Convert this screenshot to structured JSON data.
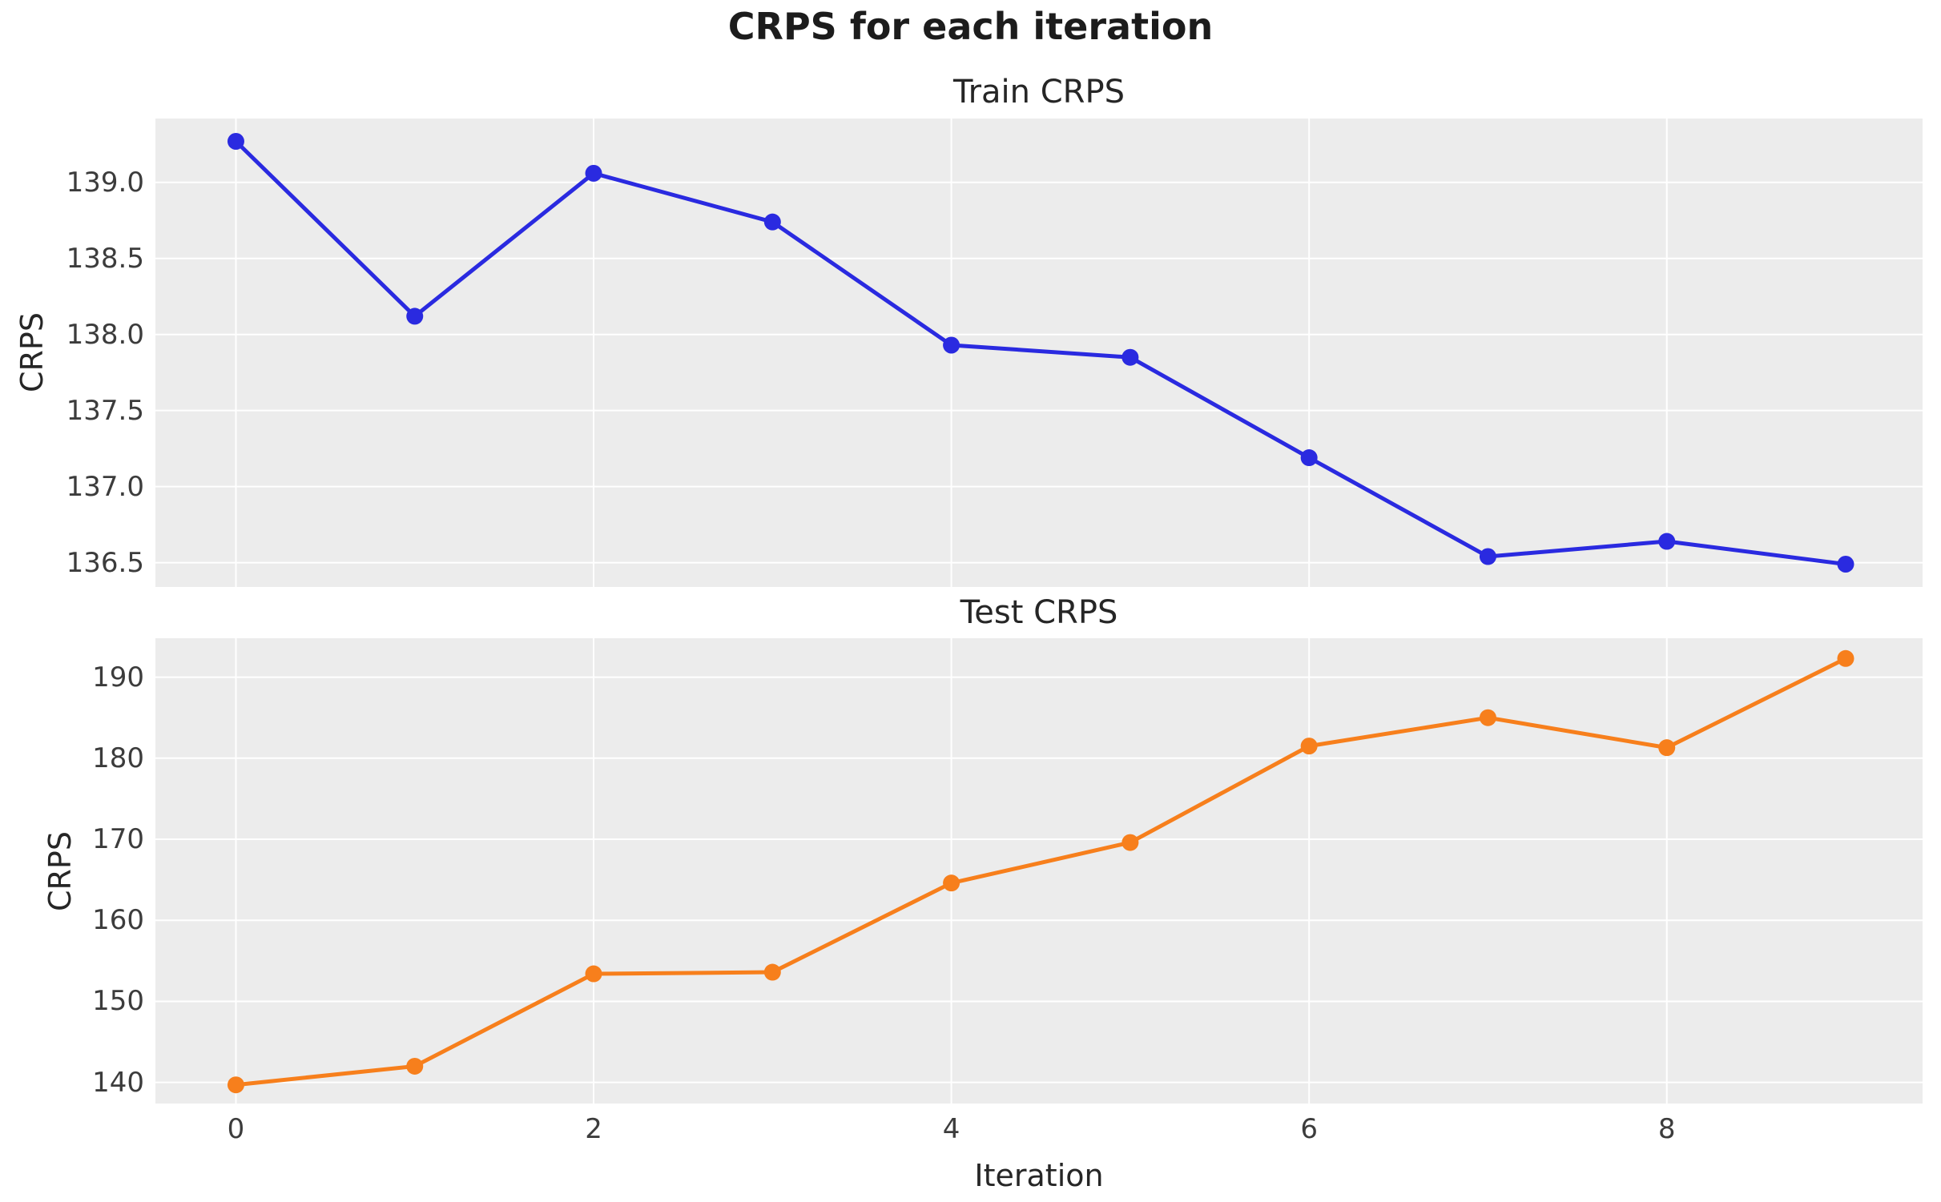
{
  "figure": {
    "title": "CRPS for each iteration",
    "xlabel": "Iteration"
  },
  "style": {
    "plot_bg": "#ececec",
    "grid_color": "#ffffff",
    "train_color": "#2a2ae0",
    "test_color": "#f77f1c",
    "tick_text_color": "#3c3c3c",
    "title_text_color": "#1c1c1c"
  },
  "chart_data": [
    {
      "type": "line",
      "id": "train",
      "title": "Train CRPS",
      "ylabel": "CRPS",
      "x": [
        0,
        1,
        2,
        3,
        4,
        5,
        6,
        7,
        8,
        9
      ],
      "series": [
        {
          "name": "Train CRPS",
          "color": "#2a2ae0",
          "values": [
            139.27,
            138.12,
            139.06,
            138.74,
            137.93,
            137.85,
            137.19,
            136.54,
            136.64,
            136.49
          ]
        }
      ],
      "xlim": [
        -0.45,
        9.43
      ],
      "ylim": [
        136.34,
        139.42
      ],
      "yticks": [
        139.0,
        138.5,
        138.0,
        137.5,
        137.0,
        136.5
      ],
      "ytick_labels": [
        "139.0",
        "138.5",
        "138.0",
        "137.5",
        "137.0",
        "136.5"
      ],
      "xticks": [
        0,
        2,
        4,
        6,
        8
      ],
      "xtick_labels": [
        "0",
        "2",
        "4",
        "6",
        "8"
      ],
      "show_xtick_labels": false,
      "grid": true,
      "legend": "none"
    },
    {
      "type": "line",
      "id": "test",
      "title": "Test CRPS",
      "ylabel": "CRPS",
      "x": [
        0,
        1,
        2,
        3,
        4,
        5,
        6,
        7,
        8,
        9
      ],
      "series": [
        {
          "name": "Test CRPS",
          "color": "#f77f1c",
          "values": [
            139.7,
            142.0,
            153.4,
            153.6,
            164.6,
            169.6,
            181.5,
            185.0,
            181.3,
            192.3
          ]
        }
      ],
      "xlim": [
        -0.45,
        9.43
      ],
      "ylim": [
        137.4,
        194.8
      ],
      "yticks": [
        190,
        180,
        170,
        160,
        150,
        140
      ],
      "ytick_labels": [
        "190",
        "180",
        "170",
        "160",
        "150",
        "140"
      ],
      "xticks": [
        0,
        2,
        4,
        6,
        8
      ],
      "xtick_labels": [
        "0",
        "2",
        "4",
        "6",
        "8"
      ],
      "show_xtick_labels": true,
      "grid": true,
      "legend": "none"
    }
  ]
}
